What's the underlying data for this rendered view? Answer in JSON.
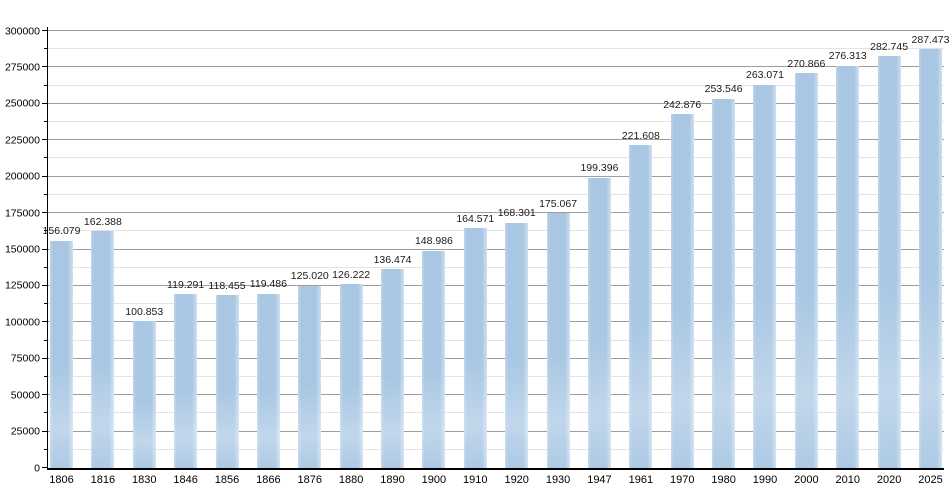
{
  "chart_data": {
    "type": "bar",
    "title": "",
    "xlabel": "",
    "ylabel": "",
    "categories": [
      "1806",
      "1816",
      "1830",
      "1846",
      "1856",
      "1866",
      "1876",
      "1880",
      "1890",
      "1900",
      "1910",
      "1920",
      "1930",
      "1947",
      "1961",
      "1970",
      "1980",
      "1990",
      "2000",
      "2010",
      "2020",
      "2025"
    ],
    "values": [
      156079,
      162388,
      100853,
      119291,
      118455,
      119486,
      125020,
      126222,
      136474,
      148986,
      164571,
      168301,
      175067,
      199396,
      221608,
      242876,
      253546,
      263071,
      270866,
      276313,
      282745,
      287473
    ],
    "value_labels": [
      "156.079",
      "162.388",
      "100.853",
      "119.291",
      "118.455",
      "119.486",
      "125.020",
      "126.222",
      "136.474",
      "148.986",
      "164.571",
      "168.301",
      "175.067",
      "199.396",
      "221.608",
      "242.876",
      "253.546",
      "263.071",
      "270.866",
      "276.313",
      "282.745",
      "287.473"
    ],
    "ylim": [
      0,
      300000
    ],
    "y_major_step": 25000,
    "y_minor_step": 12500,
    "y_tick_labels": [
      "0",
      "25000",
      "50000",
      "75000",
      "100000",
      "125000",
      "150000",
      "175000",
      "200000",
      "225000",
      "250000",
      "275000",
      "300000"
    ],
    "grid": "horizontal major and minor gridlines",
    "legend": "none",
    "colors": {
      "bar_fill": "#a9c7e3",
      "bar_edge_highlight": "#cde0f1",
      "major_gridline": "#9d9d9d",
      "minor_gridline": "#e4e4e4",
      "axis": "#000000",
      "label_text": "#1a1a1a",
      "background": "#ffffff"
    }
  }
}
